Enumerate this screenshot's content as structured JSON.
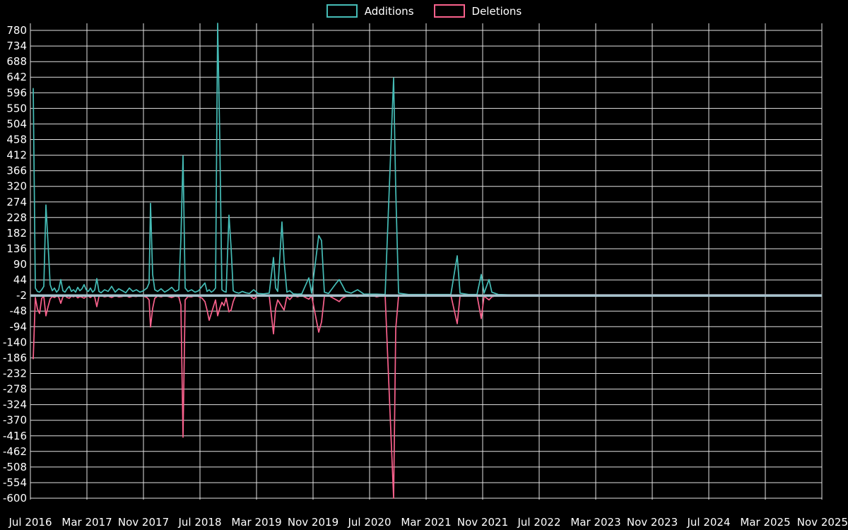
{
  "chart_data": {
    "type": "line",
    "title": "",
    "xlabel": "",
    "ylabel": "",
    "grid": true,
    "legend_position": "top-center",
    "background_color": "#000000",
    "gridline_color": "#e2e2e2",
    "zero_line_value": -2,
    "zero_line_color": "#a6c2cc",
    "ylim": [
      -600,
      792
    ],
    "x_unit": "months-since-Jul-2016",
    "series": [
      {
        "name": "Additions",
        "color": "#45bcb6",
        "value_index": 1
      },
      {
        "name": "Deletions",
        "color": "#f9618c",
        "value_index": 2
      }
    ],
    "y_ticks": [
      780,
      734,
      688,
      642,
      596,
      550,
      504,
      458,
      412,
      366,
      320,
      274,
      228,
      182,
      136,
      90,
      44,
      -2,
      -48,
      -94,
      -140,
      -186,
      -232,
      -278,
      -324,
      -370,
      -416,
      -462,
      -508,
      -554,
      -600
    ],
    "x_ticks": [
      {
        "m": 0,
        "label": "Jul 2016"
      },
      {
        "m": 8,
        "label": "Mar 2017"
      },
      {
        "m": 16,
        "label": "Nov 2017"
      },
      {
        "m": 24,
        "label": "Jul 2018"
      },
      {
        "m": 32,
        "label": "Mar 2019"
      },
      {
        "m": 40,
        "label": "Nov 2019"
      },
      {
        "m": 48,
        "label": "Jul 2020"
      },
      {
        "m": 56,
        "label": "Mar 2021"
      },
      {
        "m": 64,
        "label": "Nov 2021"
      },
      {
        "m": 72,
        "label": "Jul 2022"
      },
      {
        "m": 80,
        "label": "Mar 2023"
      },
      {
        "m": 88,
        "label": "Nov 2023"
      },
      {
        "m": 96,
        "label": "Jul 2024"
      },
      {
        "m": 104,
        "label": "Mar 2025"
      },
      {
        "m": 112,
        "label": "Nov 2025"
      }
    ],
    "points_format": [
      "month_offset",
      "additions",
      "deletions"
    ],
    "points": [
      [
        0.4,
        610,
        -190
      ],
      [
        0.7,
        20,
        -8
      ],
      [
        1.0,
        10,
        -42
      ],
      [
        1.3,
        8,
        -55
      ],
      [
        1.6,
        15,
        -10
      ],
      [
        1.9,
        25,
        -5
      ],
      [
        2.2,
        265,
        -62
      ],
      [
        2.5,
        150,
        -35
      ],
      [
        2.8,
        30,
        -12
      ],
      [
        3.1,
        12,
        -5
      ],
      [
        3.4,
        20,
        -8
      ],
      [
        3.7,
        8,
        -4
      ],
      [
        4.0,
        15,
        -6
      ],
      [
        4.3,
        45,
        -25
      ],
      [
        4.6,
        12,
        -6
      ],
      [
        4.9,
        8,
        -3
      ],
      [
        5.2,
        18,
        -8
      ],
      [
        5.5,
        25,
        -10
      ],
      [
        5.8,
        10,
        -4
      ],
      [
        6.1,
        15,
        -6
      ],
      [
        6.4,
        8,
        -3
      ],
      [
        6.7,
        22,
        -9
      ],
      [
        7.0,
        12,
        -5
      ],
      [
        7.3,
        18,
        -7
      ],
      [
        7.6,
        30,
        -10
      ],
      [
        7.9,
        15,
        -5
      ],
      [
        8.2,
        10,
        -4
      ],
      [
        8.5,
        20,
        -8
      ],
      [
        8.8,
        8,
        -3
      ],
      [
        9.1,
        14,
        -6
      ],
      [
        9.4,
        48,
        -35
      ],
      [
        9.7,
        10,
        -5
      ],
      [
        10.0,
        6,
        -3
      ],
      [
        10.5,
        15,
        -6
      ],
      [
        11.0,
        10,
        -4
      ],
      [
        11.5,
        25,
        -8
      ],
      [
        12.0,
        8,
        -3
      ],
      [
        12.5,
        18,
        -6
      ],
      [
        13.0,
        12,
        -5
      ],
      [
        13.5,
        6,
        -2
      ],
      [
        14.0,
        20,
        -7
      ],
      [
        14.5,
        10,
        -4
      ],
      [
        15.0,
        15,
        -5
      ],
      [
        15.5,
        8,
        -3
      ],
      [
        16.0,
        12,
        -4
      ],
      [
        16.5,
        20,
        -8
      ],
      [
        16.8,
        35,
        -15
      ],
      [
        17.0,
        270,
        -95
      ],
      [
        17.3,
        60,
        -40
      ],
      [
        17.6,
        15,
        -10
      ],
      [
        18.0,
        10,
        -4
      ],
      [
        18.5,
        18,
        -6
      ],
      [
        19.0,
        8,
        -3
      ],
      [
        19.5,
        14,
        -5
      ],
      [
        20.0,
        22,
        -8
      ],
      [
        20.5,
        10,
        -4
      ],
      [
        21.0,
        15,
        -6
      ],
      [
        21.3,
        165,
        -30
      ],
      [
        21.6,
        410,
        -420
      ],
      [
        21.9,
        20,
        -15
      ],
      [
        22.3,
        10,
        -5
      ],
      [
        22.8,
        15,
        -6
      ],
      [
        23.3,
        8,
        -3
      ],
      [
        23.8,
        12,
        -5
      ],
      [
        24.3,
        25,
        -10
      ],
      [
        24.7,
        35,
        -20
      ],
      [
        25.0,
        10,
        -45
      ],
      [
        25.3,
        15,
        -75
      ],
      [
        25.6,
        8,
        -55
      ],
      [
        25.9,
        12,
        -35
      ],
      [
        26.2,
        20,
        -15
      ],
      [
        26.5,
        820,
        -62
      ],
      [
        26.8,
        460,
        -40
      ],
      [
        27.1,
        15,
        -22
      ],
      [
        27.4,
        10,
        -32
      ],
      [
        27.7,
        8,
        -10
      ],
      [
        28.1,
        235,
        -50
      ],
      [
        28.4,
        140,
        -45
      ],
      [
        28.7,
        12,
        -20
      ],
      [
        29.0,
        8,
        -5
      ],
      [
        29.5,
        5,
        -3
      ],
      [
        30.0,
        10,
        -4
      ],
      [
        30.5,
        6,
        -2
      ],
      [
        31.0,
        4,
        -2
      ],
      [
        31.6,
        15,
        -12
      ],
      [
        32.2,
        4,
        -2
      ],
      [
        33.0,
        3,
        -2
      ],
      [
        33.8,
        5,
        -3
      ],
      [
        34.4,
        110,
        -115
      ],
      [
        34.7,
        20,
        -40
      ],
      [
        35.0,
        10,
        -15
      ],
      [
        35.6,
        215,
        -35
      ],
      [
        35.9,
        100,
        -45
      ],
      [
        36.3,
        8,
        -5
      ],
      [
        36.7,
        12,
        -14
      ],
      [
        37.2,
        3,
        -2
      ],
      [
        37.8,
        2,
        -6
      ],
      [
        38.4,
        3,
        -2
      ],
      [
        39.4,
        50,
        -13
      ],
      [
        39.8,
        5,
        -3
      ],
      [
        40.8,
        175,
        -110
      ],
      [
        41.2,
        160,
        -80
      ],
      [
        41.6,
        8,
        -5
      ],
      [
        42.2,
        4,
        -2
      ],
      [
        43.3,
        35,
        -15
      ],
      [
        43.7,
        45,
        -20
      ],
      [
        44.1,
        30,
        -10
      ],
      [
        44.6,
        10,
        -5
      ],
      [
        45.4,
        5,
        -2
      ],
      [
        46.3,
        15,
        -5
      ],
      [
        47.2,
        2,
        -1
      ],
      [
        48.2,
        2,
        -1
      ],
      [
        49.0,
        2,
        -6
      ],
      [
        50.2,
        1,
        -1
      ],
      [
        51.4,
        640,
        -600
      ],
      [
        51.7,
        310,
        -100
      ],
      [
        52.1,
        5,
        -4
      ],
      [
        53.5,
        1,
        -1
      ],
      [
        55.5,
        1,
        -1
      ],
      [
        57.5,
        1,
        -1
      ],
      [
        59.5,
        1,
        -1
      ],
      [
        60.4,
        115,
        -85
      ],
      [
        60.8,
        5,
        -4
      ],
      [
        62.0,
        1,
        -1
      ],
      [
        63.2,
        1,
        -1
      ],
      [
        63.8,
        60,
        -70
      ],
      [
        64.2,
        5,
        -4
      ],
      [
        64.9,
        45,
        -15
      ],
      [
        65.3,
        8,
        -6
      ],
      [
        66.2,
        1,
        -1
      ],
      [
        68.0,
        0,
        0
      ],
      [
        72.0,
        0,
        0
      ],
      [
        80.0,
        0,
        0
      ],
      [
        88.0,
        0,
        0
      ],
      [
        96.0,
        0,
        0
      ],
      [
        104.0,
        0,
        0
      ],
      [
        112.0,
        0,
        0
      ]
    ]
  }
}
